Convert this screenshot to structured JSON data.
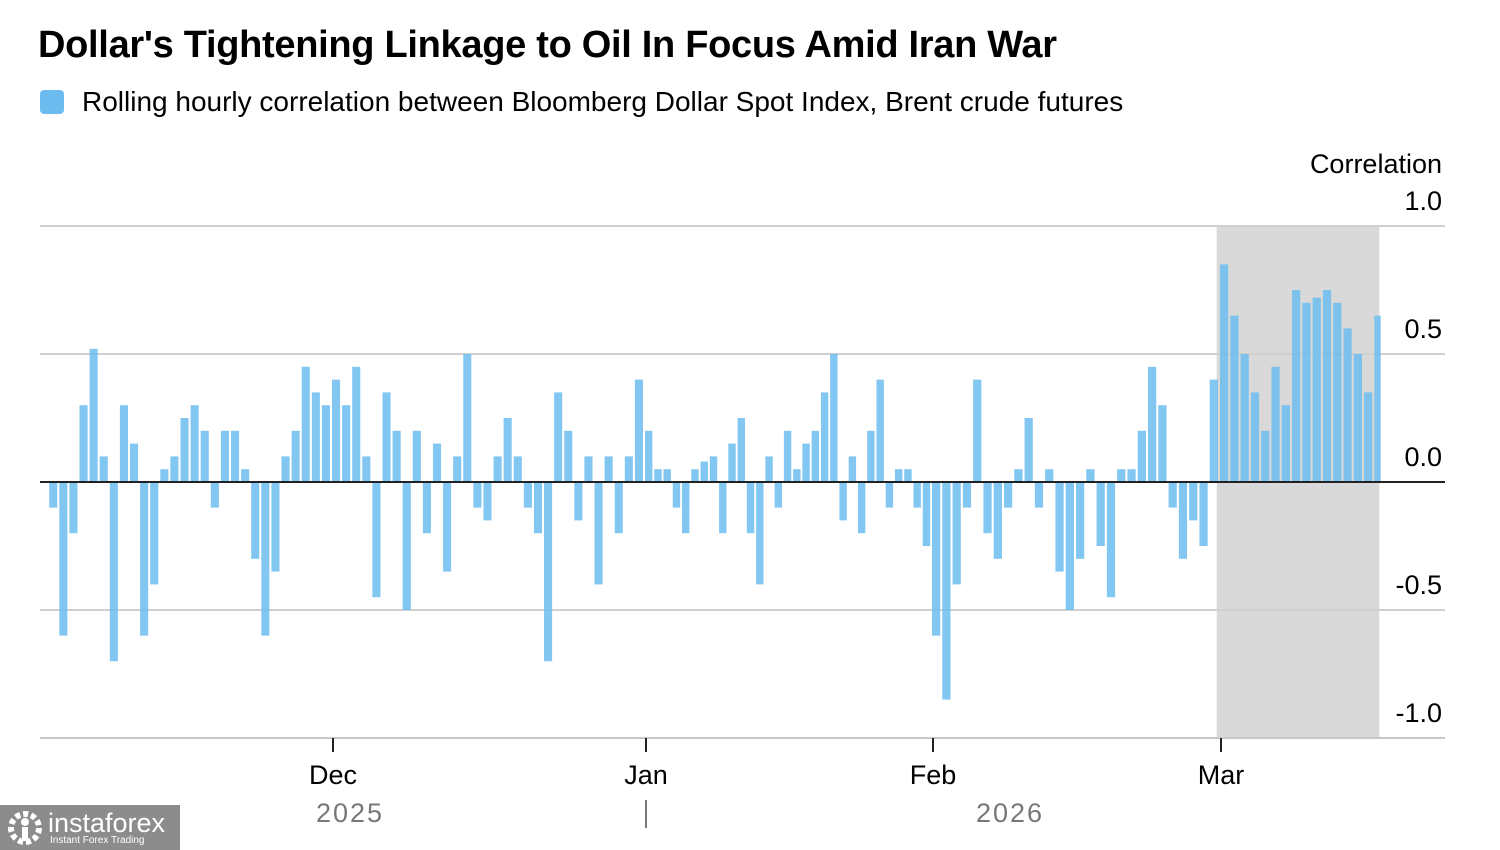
{
  "title": "Dollar's Tightening Linkage to Oil In Focus Amid Iran War",
  "legend": {
    "label": "Rolling hourly correlation between Bloomberg Dollar Spot Index, Brent crude futures",
    "color": "#6cbcf0"
  },
  "watermark": {
    "name": "instaforex",
    "tagline": "Instant Forex Trading"
  },
  "chart_data": {
    "type": "area",
    "title": "Dollar's Tightening Linkage to Oil In Focus Amid Iran War",
    "ylabel": "Correlation",
    "ylim": [
      -1.0,
      1.0
    ],
    "y_ticks": [
      "1.0",
      "0.5",
      "0.0",
      "-0.5",
      "-1.0"
    ],
    "y_tick_values": [
      1.0,
      0.5,
      0.0,
      -0.5,
      -1.0
    ],
    "x_ticks": [
      {
        "label": "Dec",
        "date": "2025-12-01"
      },
      {
        "label": "Jan",
        "date": "2026-01-01"
      },
      {
        "label": "Feb",
        "date": "2026-02-01"
      },
      {
        "label": "Mar",
        "date": "2026-03-01"
      }
    ],
    "x_years": [
      "2025",
      "2026"
    ],
    "grid": true,
    "legend_position": "top-left",
    "series_color": "#6cbcf0",
    "highlight": {
      "start": "2026-02-28",
      "end": "2026-03-16",
      "color": "#d9d9d9"
    },
    "series": [
      {
        "name": "Rolling hourly correlation between Bloomberg Dollar Spot Index, Brent crude futures",
        "dates": [
          "2025-11-03",
          "2025-11-04",
          "2025-11-05",
          "2025-11-06",
          "2025-11-07",
          "2025-11-08",
          "2025-11-09",
          "2025-11-10",
          "2025-11-11",
          "2025-11-12",
          "2025-11-13",
          "2025-11-14",
          "2025-11-15",
          "2025-11-16",
          "2025-11-17",
          "2025-11-18",
          "2025-11-19",
          "2025-11-20",
          "2025-11-21",
          "2025-11-22",
          "2025-11-23",
          "2025-11-24",
          "2025-11-25",
          "2025-11-26",
          "2025-11-27",
          "2025-11-28",
          "2025-11-29",
          "2025-11-30",
          "2025-12-01",
          "2025-12-02",
          "2025-12-03",
          "2025-12-04",
          "2025-12-05",
          "2025-12-06",
          "2025-12-07",
          "2025-12-08",
          "2025-12-09",
          "2025-12-10",
          "2025-12-11",
          "2025-12-12",
          "2025-12-13",
          "2025-12-14",
          "2025-12-15",
          "2025-12-16",
          "2025-12-17",
          "2025-12-18",
          "2025-12-19",
          "2025-12-20",
          "2025-12-21",
          "2025-12-22",
          "2025-12-23",
          "2025-12-24",
          "2025-12-25",
          "2025-12-26",
          "2025-12-27",
          "2025-12-28",
          "2025-12-29",
          "2025-12-30",
          "2025-12-31",
          "2026-01-01",
          "2026-01-02",
          "2026-01-03",
          "2026-01-04",
          "2026-01-05",
          "2026-01-06",
          "2026-01-07",
          "2026-01-08",
          "2026-01-09",
          "2026-01-10",
          "2026-01-11",
          "2026-01-12",
          "2026-01-13",
          "2026-01-14",
          "2026-01-15",
          "2026-01-16",
          "2026-01-17",
          "2026-01-18",
          "2026-01-19",
          "2026-01-20",
          "2026-01-21",
          "2026-01-22",
          "2026-01-23",
          "2026-01-24",
          "2026-01-25",
          "2026-01-26",
          "2026-01-27",
          "2026-01-28",
          "2026-01-29",
          "2026-01-30",
          "2026-01-31",
          "2026-02-01",
          "2026-02-02",
          "2026-02-03",
          "2026-02-04",
          "2026-02-05",
          "2026-02-06",
          "2026-02-07",
          "2026-02-08",
          "2026-02-09",
          "2026-02-10",
          "2026-02-11",
          "2026-02-12",
          "2026-02-13",
          "2026-02-14",
          "2026-02-15",
          "2026-02-16",
          "2026-02-17",
          "2026-02-18",
          "2026-02-19",
          "2026-02-20",
          "2026-02-21",
          "2026-02-22",
          "2026-02-23",
          "2026-02-24",
          "2026-02-25",
          "2026-02-26",
          "2026-02-27",
          "2026-02-28",
          "2026-03-01",
          "2026-03-02",
          "2026-03-03",
          "2026-03-04",
          "2026-03-05",
          "2026-03-06",
          "2026-03-07",
          "2026-03-08",
          "2026-03-09",
          "2026-03-10",
          "2026-03-11",
          "2026-03-12",
          "2026-03-13",
          "2026-03-14",
          "2026-03-15",
          "2026-03-16"
        ],
        "values": [
          -0.1,
          -0.6,
          -0.2,
          0.3,
          0.52,
          0.1,
          -0.7,
          0.3,
          0.15,
          -0.6,
          -0.4,
          0.05,
          0.1,
          0.25,
          0.3,
          0.2,
          -0.1,
          0.2,
          0.2,
          0.05,
          -0.3,
          -0.6,
          -0.35,
          0.1,
          0.2,
          0.45,
          0.35,
          0.3,
          0.4,
          0.3,
          0.45,
          0.1,
          -0.45,
          0.35,
          0.2,
          -0.5,
          0.2,
          -0.2,
          0.15,
          -0.35,
          0.1,
          0.5,
          -0.1,
          -0.15,
          0.1,
          0.25,
          0.1,
          -0.1,
          -0.2,
          -0.7,
          0.35,
          0.2,
          -0.15,
          0.1,
          -0.4,
          0.1,
          -0.2,
          0.1,
          0.4,
          0.2,
          0.05,
          0.05,
          -0.1,
          -0.2,
          0.05,
          0.08,
          0.1,
          -0.2,
          0.15,
          0.25,
          -0.2,
          -0.4,
          0.1,
          -0.1,
          0.2,
          0.05,
          0.15,
          0.2,
          0.35,
          0.5,
          -0.15,
          0.1,
          -0.2,
          0.2,
          0.4,
          -0.1,
          0.05,
          0.05,
          -0.1,
          -0.25,
          -0.6,
          -0.85,
          -0.4,
          -0.1,
          0.4,
          -0.2,
          -0.3,
          -0.1,
          0.05,
          0.25,
          -0.1,
          0.05,
          -0.35,
          -0.5,
          -0.3,
          0.05,
          -0.25,
          -0.45,
          0.05,
          0.05,
          0.2,
          0.45,
          0.3,
          -0.1,
          -0.3,
          -0.15,
          -0.25,
          0.4,
          0.85,
          0.65,
          0.5,
          0.35,
          0.2,
          0.45,
          0.3,
          0.75,
          0.7,
          0.72,
          0.75,
          0.7,
          0.6,
          0.5,
          0.35,
          0.65
        ]
      }
    ]
  }
}
